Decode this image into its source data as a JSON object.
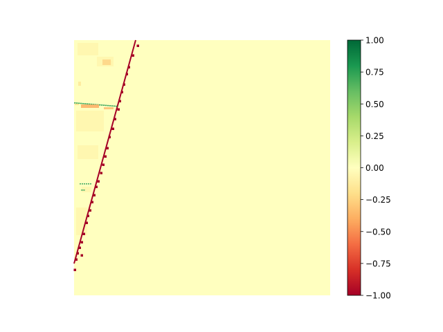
{
  "chart_data": {
    "type": "heatmap",
    "title": "",
    "xlabel": "",
    "ylabel": "",
    "axes_visible": false,
    "colormap": "RdYlGn",
    "colorbar": {
      "vmin": -1.0,
      "vmax": 1.0,
      "position": "right",
      "ticks": [
        1.0,
        0.75,
        0.5,
        0.25,
        0.0,
        -0.25,
        -0.5,
        -0.75,
        -1.0
      ],
      "tick_labels": [
        "1.00",
        "0.75",
        "0.50",
        "0.25",
        "0.00",
        "−0.25",
        "−0.50",
        "−0.75",
        "−1.00"
      ],
      "colors": [
        "#a50026",
        "#d73027",
        "#f46d43",
        "#fdae61",
        "#fee08b",
        "#ffffbf",
        "#d9ef8b",
        "#a6d96a",
        "#66bd63",
        "#1a9850",
        "#006837"
      ]
    },
    "background_value": 0.0,
    "features": [
      {
        "name": "diagonal band",
        "value": -1.0,
        "x_range": [
          0.0,
          0.24
        ],
        "y_range": [
          0.0,
          0.87
        ]
      },
      {
        "name": "upper streak",
        "value": 0.75,
        "x_range": [
          0.0,
          0.17
        ],
        "y_range": [
          0.24,
          0.27
        ]
      },
      {
        "name": "upper streak",
        "value": -0.4,
        "x_range": [
          0.03,
          0.1
        ],
        "y_range": [
          0.25,
          0.27
        ]
      },
      {
        "name": "lower streak",
        "value": 0.75,
        "x_range": [
          0.02,
          0.06
        ],
        "y_range": [
          0.56,
          0.59
        ]
      }
    ]
  },
  "colors": {
    "background": "#ffffbf",
    "negative_extreme": "#a50026",
    "positive_extreme": "#006837"
  }
}
